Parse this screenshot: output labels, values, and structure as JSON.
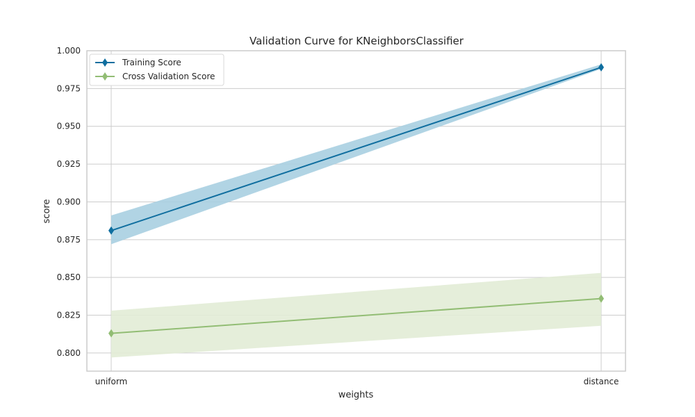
{
  "chart_data": {
    "type": "line",
    "title": "Validation Curve for KNeighborsClassifier",
    "xlabel": "weights",
    "ylabel": "score",
    "categories": [
      "uniform",
      "distance"
    ],
    "ylim": [
      0.788,
      1.0
    ],
    "yticks": [
      0.8,
      0.825,
      0.85,
      0.875,
      0.9,
      0.925,
      0.95,
      0.975,
      1.0
    ],
    "ytick_labels": [
      "0.800",
      "0.825",
      "0.850",
      "0.875",
      "0.900",
      "0.925",
      "0.950",
      "0.975",
      "1.000"
    ],
    "grid": true,
    "legend_position": "top-left",
    "series": [
      {
        "name": "Training Score",
        "color": "#0f6e9f",
        "band_color": "#a9cfe1",
        "values": [
          0.881,
          0.989
        ],
        "lower": [
          0.872,
          0.988
        ],
        "upper": [
          0.891,
          0.991
        ]
      },
      {
        "name": "Cross Validation Score",
        "color": "#92bd74",
        "band_color": "#e2ecd6",
        "values": [
          0.813,
          0.836
        ],
        "lower": [
          0.797,
          0.818
        ],
        "upper": [
          0.828,
          0.853
        ]
      }
    ]
  }
}
